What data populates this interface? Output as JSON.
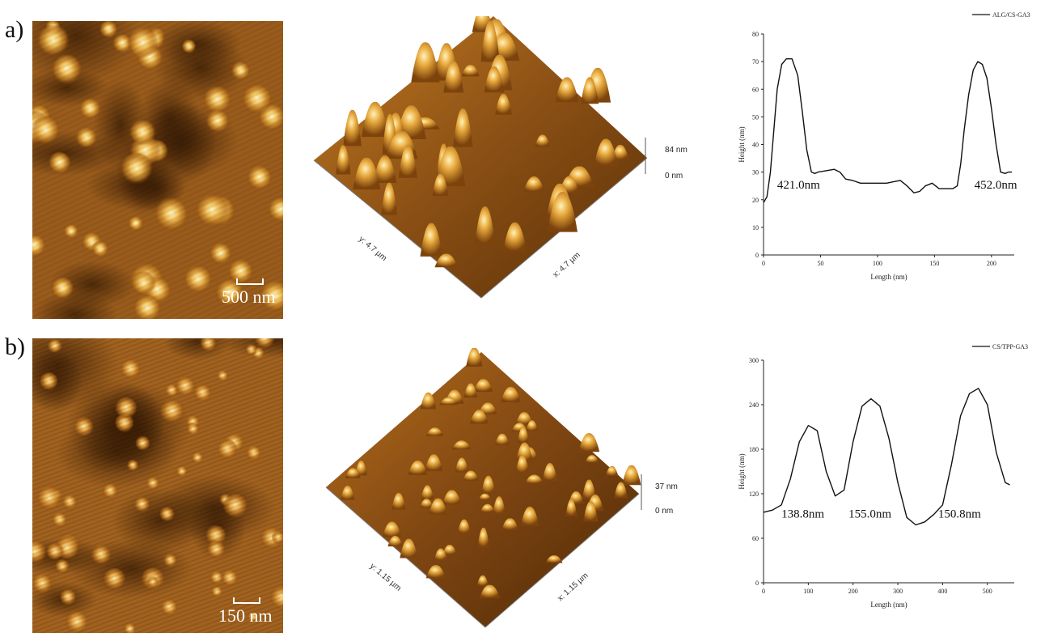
{
  "panels": [
    {
      "label": "a)",
      "scale_bar": "500 nm",
      "afm3d": {
        "z_max": "84 nm",
        "z_min": "0 nm",
        "y_axis": "y: 4.7 µm",
        "x_axis": "x: 4.7 µm"
      },
      "chart_id": 0
    },
    {
      "label": "b)",
      "scale_bar": "150 nm",
      "afm3d": {
        "z_max": "37 nm",
        "z_min": "0 nm",
        "y_axis": "y: 1.15 µm",
        "x_axis": "x: 1.15 µm"
      },
      "chart_id": 1
    }
  ],
  "chart_data": [
    {
      "type": "line",
      "legend": "ALG/CS-GA3",
      "xlabel": "Length (nm)",
      "ylabel": "Height (nm)",
      "xlim": [
        0,
        220
      ],
      "ylim": [
        0,
        80
      ],
      "xticks": [
        0,
        50,
        100,
        150,
        200
      ],
      "yticks": [
        0,
        10,
        20,
        30,
        40,
        50,
        60,
        70,
        80
      ],
      "legend_position": "top-right",
      "series": [
        {
          "x": [
            0,
            3,
            6,
            9,
            12,
            16,
            20,
            25,
            30,
            34,
            38,
            42,
            45,
            48,
            55,
            62,
            67,
            72,
            78,
            85,
            92,
            100,
            108,
            114,
            120,
            126,
            132,
            137,
            142,
            148,
            154,
            160,
            166,
            170,
            173,
            176,
            180,
            184,
            188,
            192,
            196,
            200,
            204,
            208,
            212,
            215,
            218
          ],
          "y": [
            19,
            21,
            30,
            45,
            60,
            69,
            71,
            71,
            65,
            52,
            38,
            30,
            29.5,
            30,
            30.5,
            31,
            30,
            27.5,
            27,
            26,
            26,
            26,
            26,
            26.5,
            27,
            25,
            22.5,
            23,
            25,
            26,
            24,
            24,
            24,
            25,
            33,
            45,
            58,
            67,
            70,
            69,
            64,
            53,
            40,
            30,
            29.5,
            30,
            30
          ]
        }
      ],
      "annotations": [
        "421.0nm",
        "452.0nm"
      ]
    },
    {
      "type": "line",
      "legend": "CS/TPP-GA3",
      "xlabel": "Length (nm)",
      "ylabel": "Height (nm)",
      "xlim": [
        0,
        560
      ],
      "ylim": [
        0,
        300
      ],
      "xticks": [
        0,
        100,
        200,
        300,
        400,
        500
      ],
      "yticks": [
        0,
        60,
        120,
        180,
        240,
        300
      ],
      "legend_position": "top-right",
      "series": [
        {
          "x": [
            0,
            20,
            40,
            60,
            80,
            100,
            120,
            140,
            160,
            180,
            200,
            220,
            240,
            260,
            280,
            300,
            320,
            340,
            360,
            380,
            400,
            420,
            440,
            460,
            480,
            500,
            520,
            540,
            550
          ],
          "y": [
            95,
            98,
            105,
            140,
            190,
            212,
            205,
            150,
            117,
            125,
            190,
            238,
            248,
            238,
            195,
            135,
            88,
            78,
            82,
            92,
            105,
            160,
            225,
            255,
            262,
            240,
            175,
            135,
            132
          ]
        }
      ],
      "annotations": [
        "138.8nm",
        "155.0nm",
        "150.8nm"
      ]
    }
  ]
}
